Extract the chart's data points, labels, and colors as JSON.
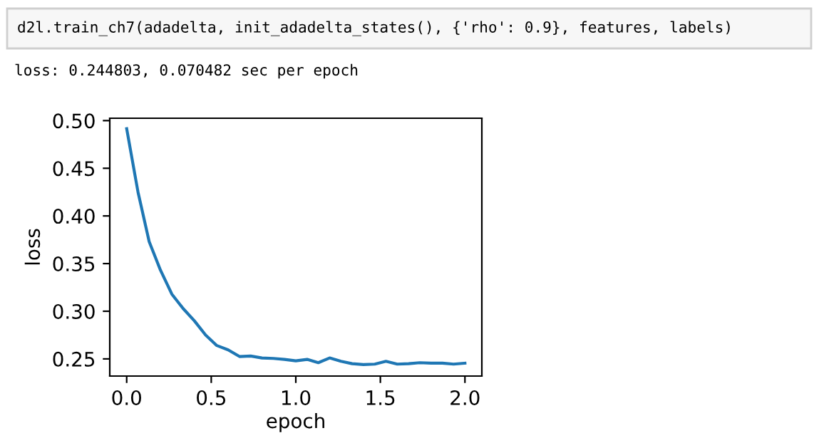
{
  "chart_data": {
    "type": "line",
    "annotations": [
      "d2l.train_ch7(adadelta, init_adadelta_states(), {'rho': 0.9}, features, labels)",
      "loss: 0.244803, 0.070482 sec per epoch"
    ],
    "xlabel": "epoch",
    "ylabel": "loss",
    "x": [
      0,
      0.067,
      0.133,
      0.2,
      0.267,
      0.333,
      0.4,
      0.467,
      0.533,
      0.6,
      0.667,
      0.733,
      0.8,
      0.867,
      0.933,
      1.0,
      1.067,
      1.133,
      1.2,
      1.267,
      1.333,
      1.4,
      1.467,
      1.533,
      1.6,
      1.667,
      1.733,
      1.8,
      1.867,
      1.933,
      2.0
    ],
    "series": [
      {
        "color": "#1f77b4",
        "values": [
          0.4915,
          0.425,
          0.373,
          0.343,
          0.318,
          0.303,
          0.29,
          0.275,
          0.264,
          0.2595,
          0.2525,
          0.253,
          0.251,
          0.2505,
          0.2495,
          0.248,
          0.2495,
          0.246,
          0.251,
          0.2475,
          0.245,
          0.244,
          0.2445,
          0.2475,
          0.2445,
          0.245,
          0.246,
          0.2455,
          0.2455,
          0.2445,
          0.2455
        ]
      }
    ],
    "xlim": [
      -0.1,
      2.1
    ],
    "ylim": [
      0.232,
      0.5025
    ],
    "xticks": [
      {
        "value": 0,
        "label": "0.0"
      },
      0.5,
      {
        "value": 1,
        "label": "1.0"
      },
      1.5,
      {
        "value": 2,
        "label": "2.0"
      }
    ],
    "yticks": [
      0.25,
      {
        "value": 0.3,
        "label": "0.30"
      },
      0.35,
      {
        "value": 0.4,
        "label": "0.40"
      },
      0.45,
      {
        "value": 0.5,
        "label": "0.50"
      }
    ],
    "grid": false,
    "legend": false,
    "marker": "none",
    "line_style": "solid"
  }
}
